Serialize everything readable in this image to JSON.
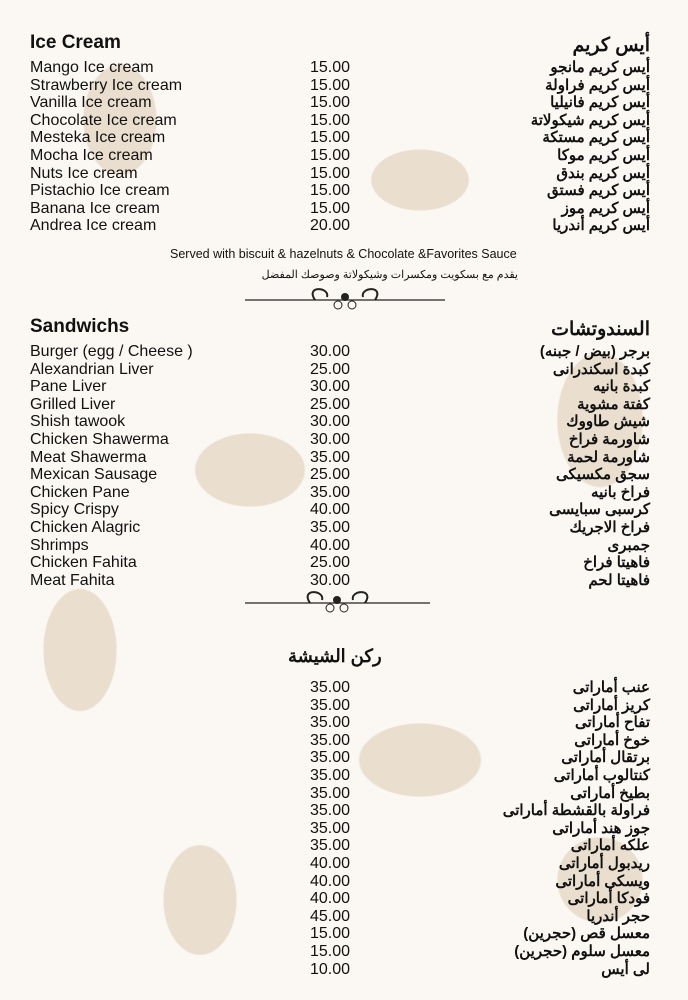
{
  "ice_cream": {
    "title_en": "Ice Cream",
    "title_ar": "أيس كريم",
    "items": [
      {
        "en": "Mango Ice cream",
        "ar": "أيس كريم مانجو",
        "price": "15.00"
      },
      {
        "en": "Strawberry Ice cream",
        "ar": "أيس كريم فراولة",
        "price": "15.00"
      },
      {
        "en": "Vanilla Ice cream",
        "ar": "أيس كريم فانيليا",
        "price": "15.00"
      },
      {
        "en": "Chocolate Ice cream",
        "ar": "أيس كريم شيكولاتة",
        "price": "15.00"
      },
      {
        "en": "Mesteka Ice cream",
        "ar": "أيس كريم مستكة",
        "price": "15.00"
      },
      {
        "en": "Mocha Ice cream",
        "ar": "أيس كريم موكا",
        "price": "15.00"
      },
      {
        "en": "Nuts Ice cream",
        "ar": "أيس كريم بندق",
        "price": "15.00"
      },
      {
        "en": "Pistachio Ice cream",
        "ar": "أيس كريم فستق",
        "price": "15.00"
      },
      {
        "en": "Banana Ice cream",
        "ar": "أيس كريم موز",
        "price": "15.00"
      },
      {
        "en": "Andrea Ice cream",
        "ar": "أيس كريم أندريا",
        "price": "20.00"
      }
    ],
    "note_en": "Served with biscuit & hazelnuts & Chocolate &Favorites Sauce",
    "note_ar": "يقدم مع بسكويت ومكسرات وشيكولاتة وصوصك المفضل"
  },
  "sandwiches": {
    "title_en": "Sandwichs",
    "title_ar": "السندوتشات",
    "items": [
      {
        "en": "Burger (egg / Cheese )",
        "ar": "برجر (بيض / جبنه)",
        "price": "30.00"
      },
      {
        "en": "Alexandrian Liver",
        "ar": "كبدة اسكندرانى",
        "price": "25.00"
      },
      {
        "en": "Pane Liver",
        "ar": "كبدة بانيه",
        "price": "30.00"
      },
      {
        "en": "Grilled Liver",
        "ar": "كفتة مشوية",
        "price": "25.00"
      },
      {
        "en": "Shish tawook",
        "ar": "شيش طاووك",
        "price": "30.00"
      },
      {
        "en": "Chicken Shawerma",
        "ar": "شاورمة فراخ",
        "price": "30.00"
      },
      {
        "en": "Meat Shawerma",
        "ar": "شاورمة لحمة",
        "price": "35.00"
      },
      {
        "en": "Mexican Sausage",
        "ar": "سجق مكسيكى",
        "price": "25.00"
      },
      {
        "en": "Chicken Pane",
        "ar": "فراخ بانيه",
        "price": "35.00"
      },
      {
        "en": "Spicy Crispy",
        "ar": "كرسبى سبايسى",
        "price": "40.00"
      },
      {
        "en": "Chicken Alagric",
        "ar": "فراخ الاجريك",
        "price": "35.00"
      },
      {
        "en": "Shrimps",
        "ar": "جمبرى",
        "price": "40.00"
      },
      {
        "en": "Chicken Fahita",
        "ar": "فاهيتا فراخ",
        "price": "25.00"
      },
      {
        "en": "Meat Fahita",
        "ar": "فاهيتا لحم",
        "price": "30.00"
      }
    ]
  },
  "shisha": {
    "title_ar": "ركن الشيشة",
    "items": [
      {
        "ar": "عنب أماراتى",
        "price": "35.00"
      },
      {
        "ar": "كريز أماراتى",
        "price": "35.00"
      },
      {
        "ar": "تفاح أماراتى",
        "price": "35.00"
      },
      {
        "ar": "خوخ أماراتى",
        "price": "35.00"
      },
      {
        "ar": "برتقال أماراتى",
        "price": "35.00"
      },
      {
        "ar": "كنتالوب أماراتى",
        "price": "35.00"
      },
      {
        "ar": "بطيخ أماراتى",
        "price": "35.00"
      },
      {
        "ar": "فراولة بالقشطة أماراتى",
        "price": "35.00"
      },
      {
        "ar": "جوز هند أماراتى",
        "price": "35.00"
      },
      {
        "ar": "علكه أماراتى",
        "price": "35.00"
      },
      {
        "ar": "ريدبول أماراتى",
        "price": "40.00"
      },
      {
        "ar": "ويسكى أماراتى",
        "price": "40.00"
      },
      {
        "ar": "فودكا أماراتى",
        "price": "40.00"
      },
      {
        "ar": "حجر أندريا",
        "price": "45.00"
      },
      {
        "ar": "معسل قص (حجرين)",
        "price": "15.00"
      },
      {
        "ar": "معسل سلوم (حجرين)",
        "price": "15.00"
      },
      {
        "ar": "لى أيس",
        "price": "10.00"
      }
    ]
  }
}
